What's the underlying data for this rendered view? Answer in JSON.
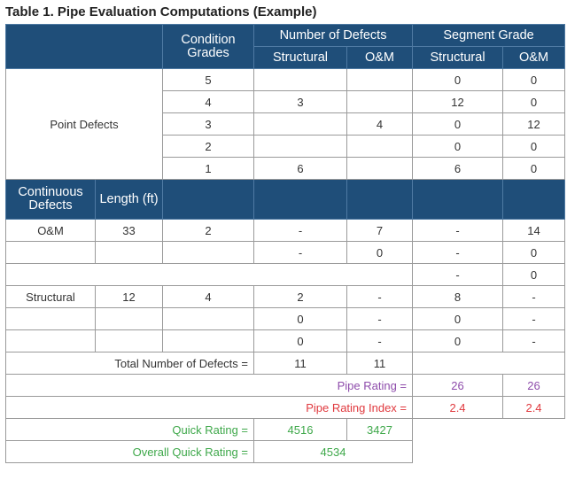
{
  "title": "Table 1. Pipe Evaluation Computations (Example)",
  "header": {
    "condition_grades": "Condition Grades",
    "number_of_defects": "Number of Defects",
    "segment_grade": "Segment Grade",
    "structural": "Structural",
    "om": "O&M"
  },
  "point_defects": {
    "label": "Point Defects",
    "rows": [
      {
        "grade": "5",
        "def_struct": "",
        "def_om": "",
        "seg_struct": "0",
        "seg_om": "0"
      },
      {
        "grade": "4",
        "def_struct": "3",
        "def_om": "",
        "seg_struct": "12",
        "seg_om": "0"
      },
      {
        "grade": "3",
        "def_struct": "",
        "def_om": "4",
        "seg_struct": "0",
        "seg_om": "12"
      },
      {
        "grade": "2",
        "def_struct": "",
        "def_om": "",
        "seg_struct": "0",
        "seg_om": "0"
      },
      {
        "grade": "1",
        "def_struct": "6",
        "def_om": "",
        "seg_struct": "6",
        "seg_om": "0"
      }
    ]
  },
  "continuous_header": {
    "continuous_defects": "Continuous Defects",
    "length": "Length (ft)"
  },
  "continuous": {
    "om": {
      "label": "O&M",
      "length": "33",
      "grade": "2",
      "rows": [
        {
          "def_struct": "-",
          "def_om": "7",
          "seg_struct": "-",
          "seg_om": "14"
        },
        {
          "def_struct": "-",
          "def_om": "0",
          "seg_struct": "-",
          "seg_om": "0"
        },
        {
          "seg_struct": "-",
          "seg_om": "0"
        }
      ]
    },
    "structural": {
      "label": "Structural",
      "length": "12",
      "grade": "4",
      "rows": [
        {
          "def_struct": "2",
          "def_om": "-",
          "seg_struct": "8",
          "seg_om": "-"
        },
        {
          "def_struct": "0",
          "def_om": "-",
          "seg_struct": "0",
          "seg_om": "-"
        },
        {
          "def_struct": "0",
          "def_om": "-",
          "seg_struct": "0",
          "seg_om": "-"
        }
      ]
    }
  },
  "totals": {
    "label": "Total Number of Defects =",
    "structural": "11",
    "om": "11"
  },
  "pipe_rating": {
    "label": "Pipe Rating =",
    "structural": "26",
    "om": "26"
  },
  "pipe_rating_index": {
    "label": "Pipe Rating Index =",
    "structural": "2.4",
    "om": "2.4"
  },
  "quick_rating": {
    "label": "Quick Rating =",
    "structural": "4516",
    "om": "3427"
  },
  "overall_quick_rating": {
    "label": "Overall Quick Rating =",
    "value": "4534"
  },
  "colors": {
    "header_bg": "#1f4e79",
    "pipe_rating": "#8e4cab",
    "pipe_rating_index": "#e0393e",
    "quick_rating": "#3ea84a"
  }
}
